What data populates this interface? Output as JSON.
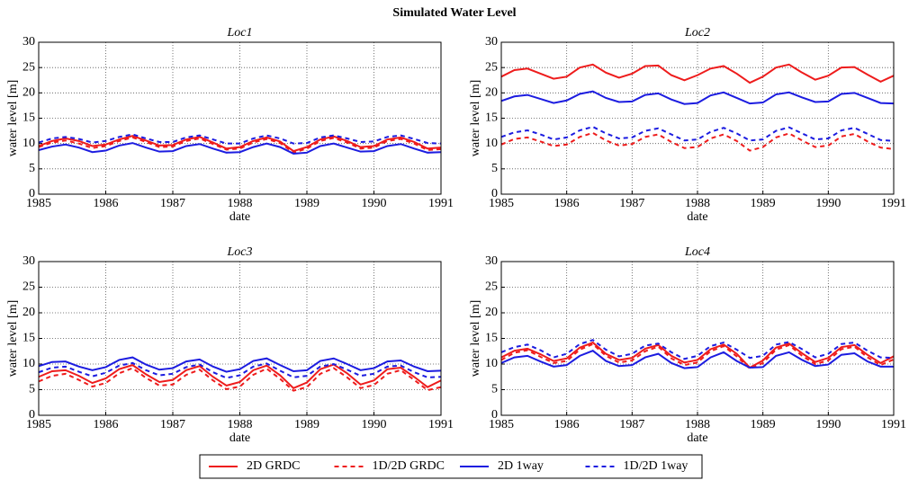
{
  "title": "Simulated Water Level",
  "legend": [
    {
      "name": "2D GRDC",
      "color": "#ee1c1c",
      "dashed": false
    },
    {
      "name": "1D/2D GRDC",
      "color": "#ee1c1c",
      "dashed": true
    },
    {
      "name": "2D 1way",
      "color": "#1c1ce0",
      "dashed": false
    },
    {
      "name": "1D/2D 1way",
      "color": "#1c1ce0",
      "dashed": true
    }
  ],
  "chart_data": [
    {
      "type": "line",
      "title": "Loc1",
      "xlabel": "date",
      "ylabel": "water level [m]",
      "xlim": [
        1985,
        1991
      ],
      "xticks": [
        1985,
        1986,
        1987,
        1988,
        1989,
        1990,
        1991
      ],
      "ylim": [
        0,
        30
      ],
      "yticks": [
        0,
        5,
        10,
        15,
        20,
        25,
        30
      ],
      "grid": true,
      "x": [
        1985,
        1985.2,
        1985.4,
        1985.6,
        1985.8,
        1986,
        1986.2,
        1986.4,
        1986.6,
        1986.8,
        1987,
        1987.2,
        1987.4,
        1987.6,
        1987.8,
        1988,
        1988.2,
        1988.4,
        1988.6,
        1988.8,
        1989,
        1989.2,
        1989.4,
        1989.6,
        1989.8,
        1990,
        1990.2,
        1990.4,
        1990.6,
        1990.8,
        1991
      ],
      "series": [
        {
          "values": [
            9.5,
            10.5,
            11,
            10.5,
            9.5,
            9.8,
            10.8,
            11.5,
            10.6,
            9.6,
            9.7,
            10.8,
            11.3,
            10.2,
            9,
            9.3,
            10.5,
            11.2,
            10.4,
            8.5,
            9.3,
            10.8,
            11.4,
            10.5,
            9.3,
            9.5,
            10.8,
            11.2,
            10.3,
            9,
            9.2
          ]
        },
        {
          "values": [
            9.3,
            10.2,
            10.6,
            10,
            9.1,
            9.5,
            10.5,
            11.2,
            10.3,
            9.3,
            9.4,
            10.5,
            11,
            9.9,
            8.8,
            9,
            10.2,
            10.9,
            10.1,
            8.2,
            9,
            10.5,
            11.1,
            10.2,
            9,
            9.2,
            10.5,
            10.9,
            10,
            8.7,
            8.9
          ]
        },
        {
          "values": [
            8.7,
            9.4,
            9.8,
            9.2,
            8.3,
            8.6,
            9.6,
            10.1,
            9.2,
            8.4,
            8.5,
            9.5,
            9.9,
            9,
            8.2,
            8.3,
            9.3,
            10,
            9.3,
            8,
            8.2,
            9.5,
            10,
            9.2,
            8.4,
            8.5,
            9.5,
            9.9,
            9,
            8.2,
            8.3
          ]
        },
        {
          "values": [
            10.2,
            11,
            11.3,
            10.9,
            10.2,
            10.5,
            11.3,
            11.8,
            11,
            10.3,
            10.3,
            11.2,
            11.6,
            10.8,
            10,
            10,
            11,
            11.6,
            11,
            10,
            10.1,
            11.2,
            11.6,
            11,
            10.3,
            10.4,
            11.3,
            11.6,
            10.9,
            10.1,
            10
          ]
        }
      ]
    },
    {
      "type": "line",
      "title": "Loc2",
      "xlabel": "date",
      "ylabel": "water level [m]",
      "xlim": [
        1985,
        1991
      ],
      "xticks": [
        1985,
        1986,
        1987,
        1988,
        1989,
        1990,
        1991
      ],
      "ylim": [
        0,
        30
      ],
      "yticks": [
        0,
        5,
        10,
        15,
        20,
        25,
        30
      ],
      "grid": true,
      "x": [
        1985,
        1985.2,
        1985.4,
        1985.6,
        1985.8,
        1986,
        1986.2,
        1986.4,
        1986.6,
        1986.8,
        1987,
        1987.2,
        1987.4,
        1987.6,
        1987.8,
        1988,
        1988.2,
        1988.4,
        1988.6,
        1988.8,
        1989,
        1989.2,
        1989.4,
        1989.6,
        1989.8,
        1990,
        1990.2,
        1990.4,
        1990.6,
        1990.8,
        1991
      ],
      "series": [
        {
          "values": [
            23.2,
            24.5,
            24.8,
            23.8,
            22.8,
            23.2,
            25,
            25.6,
            24,
            23,
            23.8,
            25.3,
            25.4,
            23.5,
            22.5,
            23.5,
            24.8,
            25.3,
            23.8,
            22,
            23.2,
            25,
            25.6,
            24,
            22.6,
            23.4,
            25,
            25.1,
            23.6,
            22.2,
            23.4
          ]
        },
        {
          "values": [
            9.8,
            10.9,
            11.2,
            10.4,
            9.5,
            9.8,
            11.3,
            12.1,
            10.6,
            9.6,
            9.9,
            11.3,
            11.8,
            10.3,
            9.1,
            9.3,
            11,
            11.8,
            10.5,
            8.6,
            9.3,
            11.2,
            12,
            10.6,
            9.3,
            9.6,
            11.4,
            11.9,
            10.4,
            9.2,
            8.9
          ]
        },
        {
          "values": [
            18.4,
            19.3,
            19.6,
            18.8,
            18,
            18.5,
            19.8,
            20.3,
            19,
            18.2,
            18.3,
            19.6,
            19.9,
            18.7,
            17.8,
            18,
            19.5,
            20.1,
            19,
            17.9,
            18.1,
            19.7,
            20.1,
            19.1,
            18.2,
            18.3,
            19.8,
            20,
            19,
            18,
            17.9
          ]
        },
        {
          "values": [
            11.3,
            12.2,
            12.6,
            11.8,
            10.8,
            11.2,
            12.6,
            13.3,
            12,
            11,
            11.2,
            12.5,
            13,
            11.8,
            10.6,
            10.8,
            12.3,
            13.1,
            12,
            10.6,
            10.8,
            12.5,
            13.2,
            12,
            10.8,
            11,
            12.6,
            13.1,
            11.9,
            10.7,
            10.5
          ]
        }
      ]
    },
    {
      "type": "line",
      "title": "Loc3",
      "xlabel": "date",
      "ylabel": "water level [m]",
      "xlim": [
        1985,
        1991
      ],
      "xticks": [
        1985,
        1986,
        1987,
        1988,
        1989,
        1990,
        1991
      ],
      "ylim": [
        0,
        30
      ],
      "yticks": [
        0,
        5,
        10,
        15,
        20,
        25,
        30
      ],
      "grid": true,
      "x": [
        1985,
        1985.2,
        1985.4,
        1985.6,
        1985.8,
        1986,
        1986.2,
        1986.4,
        1986.6,
        1986.8,
        1987,
        1987.2,
        1987.4,
        1987.6,
        1987.8,
        1988,
        1988.2,
        1988.4,
        1988.6,
        1988.8,
        1989,
        1989.2,
        1989.4,
        1989.6,
        1989.8,
        1990,
        1990.2,
        1990.4,
        1990.6,
        1990.8,
        1991
      ],
      "series": [
        {
          "values": [
            7.5,
            8.6,
            8.8,
            7.7,
            6.3,
            7.2,
            9,
            9.8,
            8,
            6.5,
            6.9,
            8.8,
            9.6,
            7.5,
            5.8,
            6.5,
            8.8,
            9.7,
            7.8,
            5.3,
            6.4,
            9,
            9.9,
            8.2,
            6,
            6.8,
            9,
            9.3,
            7.5,
            5.5,
            6.8
          ]
        },
        {
          "values": [
            6.6,
            7.7,
            8.1,
            6.9,
            5.6,
            6.3,
            8.2,
            9.2,
            7.3,
            5.8,
            6,
            7.9,
            8.9,
            6.8,
            5.1,
            5.6,
            7.9,
            9.1,
            7.1,
            4.8,
            5.5,
            8.1,
            9.2,
            7.4,
            5.3,
            5.9,
            8.1,
            8.8,
            6.9,
            4.9,
            5.5
          ]
        },
        {
          "values": [
            9.6,
            10.4,
            10.5,
            9.5,
            8.8,
            9.4,
            10.8,
            11.3,
            9.9,
            8.9,
            9.2,
            10.5,
            10.9,
            9.5,
            8.5,
            9,
            10.6,
            11.1,
            9.8,
            8.6,
            8.8,
            10.6,
            11.1,
            10,
            8.8,
            9.2,
            10.5,
            10.7,
            9.5,
            8.6,
            8.7
          ]
        },
        {
          "values": [
            8.4,
            9.3,
            9.5,
            8.5,
            7.6,
            8.3,
            9.7,
            10.2,
            8.8,
            7.8,
            8.1,
            9.4,
            9.9,
            8.4,
            7.3,
            7.8,
            9.5,
            10.1,
            8.7,
            7.4,
            7.7,
            9.5,
            10,
            8.9,
            7.7,
            8.1,
            9.5,
            9.7,
            8.4,
            7.4,
            7.5
          ]
        }
      ]
    },
    {
      "type": "line",
      "title": "Loc4",
      "xlabel": "date",
      "ylabel": "water level [m]",
      "xlim": [
        1985,
        1991
      ],
      "xticks": [
        1985,
        1986,
        1987,
        1988,
        1989,
        1990,
        1991
      ],
      "ylim": [
        0,
        30
      ],
      "yticks": [
        0,
        5,
        10,
        15,
        20,
        25,
        30
      ],
      "grid": true,
      "x": [
        1985,
        1985.2,
        1985.4,
        1985.6,
        1985.8,
        1986,
        1986.2,
        1986.4,
        1986.6,
        1986.8,
        1987,
        1987.2,
        1987.4,
        1987.6,
        1987.8,
        1988,
        1988.2,
        1988.4,
        1988.6,
        1988.8,
        1989,
        1989.2,
        1989.4,
        1989.6,
        1989.8,
        1990,
        1990.2,
        1990.4,
        1990.6,
        1990.8,
        1991
      ],
      "series": [
        {
          "values": [
            11.3,
            12.6,
            13,
            11.9,
            10.6,
            11.1,
            13.2,
            14.2,
            12,
            10.8,
            11.2,
            13,
            13.7,
            11.6,
            10.3,
            10.8,
            12.9,
            13.8,
            12,
            9.3,
            10.7,
            13.2,
            14,
            12.1,
            10.4,
            11.2,
            13.3,
            13.7,
            11.8,
            10.2,
            11.5
          ]
        },
        {
          "values": [
            10.8,
            12.2,
            12.7,
            11.4,
            10.2,
            10.6,
            12.8,
            13.9,
            11.6,
            10.3,
            10.7,
            12.5,
            13.4,
            11.1,
            9.8,
            10.3,
            12.5,
            13.5,
            11.5,
            9.1,
            10.2,
            12.8,
            13.7,
            11.6,
            10,
            10.7,
            12.9,
            13.4,
            11.3,
            9.8,
            10.9
          ]
        },
        {
          "values": [
            10.2,
            11.3,
            11.6,
            10.5,
            9.5,
            9.8,
            11.6,
            12.6,
            10.6,
            9.6,
            9.8,
            11.3,
            12,
            10.2,
            9.2,
            9.4,
            11.3,
            12.3,
            10.6,
            9.3,
            9.4,
            11.6,
            12.3,
            10.8,
            9.6,
            9.9,
            11.8,
            12.1,
            10.5,
            9.5,
            9.5
          ]
        },
        {
          "values": [
            12.3,
            13.3,
            13.8,
            12.7,
            11.3,
            12,
            13.9,
            14.7,
            12.8,
            11.5,
            12,
            13.6,
            14,
            12.3,
            11,
            11.6,
            13.5,
            14.2,
            12.8,
            11.2,
            11.6,
            13.8,
            14.3,
            12.9,
            11.3,
            12,
            13.9,
            14.2,
            12.6,
            11.3,
            11.2
          ]
        }
      ]
    }
  ]
}
